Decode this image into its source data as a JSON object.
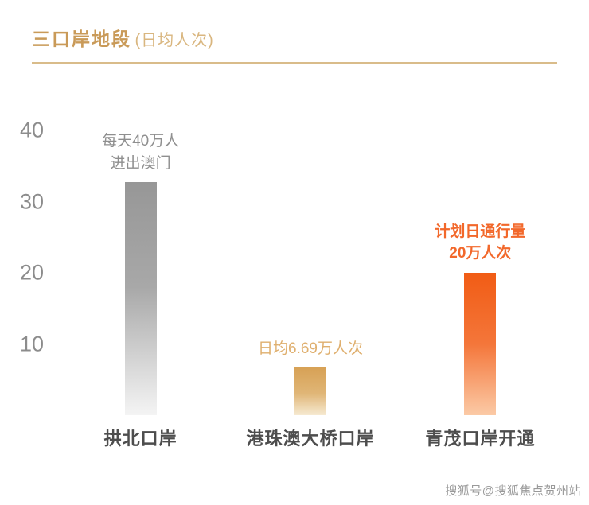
{
  "header": {
    "title": "三口岸地段",
    "subtitle": "(日均人次)"
  },
  "chart_data": {
    "type": "bar",
    "title": "三口岸地段 (日均人次)",
    "categories": [
      "拱北口岸",
      "港珠澳大桥口岸",
      "青茂口岸开通"
    ],
    "values": [
      40,
      6.69,
      20
    ],
    "ylim": [
      0,
      40
    ],
    "yticks": [
      40,
      30,
      20,
      10
    ],
    "xlabel": "",
    "ylabel": "",
    "grid": false,
    "legend": "none",
    "annotations": [
      {
        "text": "每天40万人\n进出澳门",
        "color": "#8f8f8f",
        "bold": false
      },
      {
        "text": "日均6.69万人次",
        "color": "#dfaf6e",
        "bold": false
      },
      {
        "text": "计划日通行量\n20万人次",
        "color": "#f2682b",
        "bold": true
      }
    ],
    "bar_gradients": [
      [
        "#979797 0%",
        "#a8a8a8 45%",
        "#d9d9d9 80%",
        "#f4f4f4 100%"
      ],
      [
        "#d7a155 0%",
        "#e0b677 55%",
        "#f6ead2 100%"
      ],
      [
        "#f15c15 0%",
        "#f4763a 50%",
        "#fbcaa6 100%"
      ]
    ]
  },
  "colors": {
    "title": "#c99a58",
    "subtitle": "#d9b67f",
    "underline": "#d9bc8a",
    "ytick": "#8c8c8c",
    "xlabel": "#4d4d4d",
    "watermark": "#999999"
  },
  "watermark": "搜狐号@搜狐焦点贺州站"
}
